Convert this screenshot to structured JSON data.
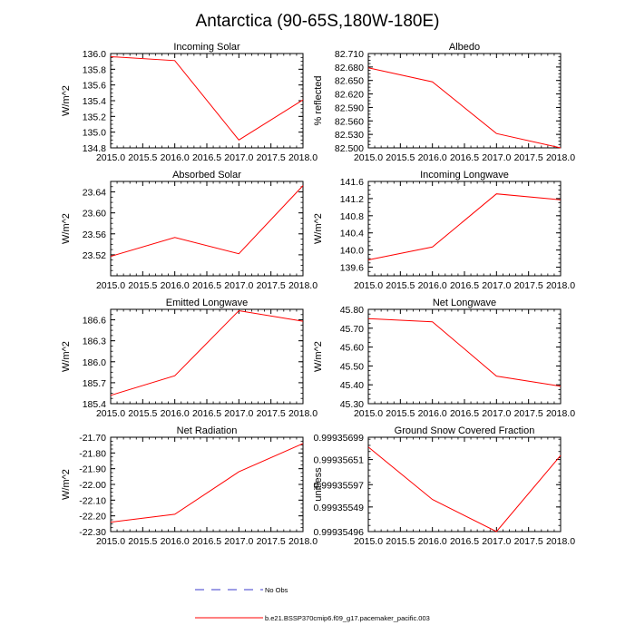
{
  "page_title": "Antarctica (90-65S,180W-180E)",
  "colors": {
    "series": "#ff0000",
    "obs": "#3b3bcc",
    "axis": "#000000"
  },
  "legend": [
    {
      "label": "No Obs",
      "style": "dashed",
      "color": "#3b3bcc"
    },
    {
      "label": "b.e21.BSSP370cmip6.f09_g17.pacemaker_pacific.003",
      "style": "solid",
      "color": "#ff0000"
    }
  ],
  "chart_data": [
    {
      "type": "line",
      "title": "Incoming Solar",
      "ylabel": "W/m^2",
      "xlim": [
        2015,
        2018
      ],
      "xticks": [
        "2015.0",
        "2015.5",
        "2016.0",
        "2016.5",
        "2017.0",
        "2017.5",
        "2018.0"
      ],
      "ylim": [
        134.8,
        136.0
      ],
      "yticks": [
        "134.8",
        "135.0",
        "135.2",
        "135.4",
        "135.6",
        "135.8",
        "136.0"
      ],
      "series": [
        {
          "x": [
            2015,
            2016,
            2017,
            2018
          ],
          "y": [
            135.96,
            135.91,
            134.9,
            135.41
          ]
        }
      ]
    },
    {
      "type": "line",
      "title": "Albedo",
      "ylabel": "% reflected",
      "xlim": [
        2015,
        2018
      ],
      "xticks": [
        "2015.0",
        "2015.5",
        "2016.0",
        "2016.5",
        "2017.0",
        "2017.5",
        "2018.0"
      ],
      "ylim": [
        82.5,
        82.71
      ],
      "yticks": [
        "82.500",
        "82.530",
        "82.560",
        "82.590",
        "82.620",
        "82.650",
        "82.680",
        "82.710"
      ],
      "series": [
        {
          "x": [
            2015,
            2016,
            2017,
            2018
          ],
          "y": [
            82.678,
            82.647,
            82.532,
            82.5
          ]
        }
      ]
    },
    {
      "type": "line",
      "title": "Absorbed Solar",
      "ylabel": "W/m^2",
      "xlim": [
        2015,
        2018
      ],
      "xticks": [
        "2015.0",
        "2015.5",
        "2016.0",
        "2016.5",
        "2017.0",
        "2017.5",
        "2018.0"
      ],
      "ylim": [
        23.48,
        23.66
      ],
      "yticks": [
        "23.52",
        "23.56",
        "23.60",
        "23.64"
      ],
      "series": [
        {
          "x": [
            2015,
            2016,
            2017,
            2018
          ],
          "y": [
            23.517,
            23.553,
            23.522,
            23.652
          ]
        }
      ]
    },
    {
      "type": "line",
      "title": "Incoming Longwave",
      "ylabel": "W/m^2",
      "xlim": [
        2015,
        2018
      ],
      "xticks": [
        "2015.0",
        "2015.5",
        "2016.0",
        "2016.5",
        "2017.0",
        "2017.5",
        "2018.0"
      ],
      "ylim": [
        139.4,
        141.6
      ],
      "yticks": [
        "139.6",
        "140.0",
        "140.4",
        "140.8",
        "141.2",
        "141.6"
      ],
      "series": [
        {
          "x": [
            2015,
            2016,
            2017,
            2018
          ],
          "y": [
            139.77,
            140.07,
            141.31,
            141.17
          ]
        }
      ]
    },
    {
      "type": "line",
      "title": "Emitted Longwave",
      "ylabel": "W/m^2",
      "xlim": [
        2015,
        2018
      ],
      "xticks": [
        "2015.0",
        "2015.5",
        "2016.0",
        "2016.5",
        "2017.0",
        "2017.5",
        "2018.0"
      ],
      "ylim": [
        185.4,
        186.75
      ],
      "yticks": [
        "185.4",
        "185.7",
        "186.0",
        "186.3",
        "186.6"
      ],
      "series": [
        {
          "x": [
            2015,
            2016,
            2017,
            2018
          ],
          "y": [
            185.52,
            185.8,
            186.73,
            186.58
          ]
        }
      ]
    },
    {
      "type": "line",
      "title": "Net Longwave",
      "ylabel": "W/m^2",
      "xlim": [
        2015,
        2018
      ],
      "xticks": [
        "2015.0",
        "2015.5",
        "2016.0",
        "2016.5",
        "2017.0",
        "2017.5",
        "2018.0"
      ],
      "ylim": [
        45.3,
        45.8
      ],
      "yticks": [
        "45.30",
        "45.40",
        "45.50",
        "45.60",
        "45.70",
        "45.80"
      ],
      "series": [
        {
          "x": [
            2015,
            2016,
            2017,
            2018
          ],
          "y": [
            45.751,
            45.734,
            45.446,
            45.393
          ]
        }
      ]
    },
    {
      "type": "line",
      "title": "Net Radiation",
      "ylabel": "W/m^2",
      "xlim": [
        2015,
        2018
      ],
      "xticks": [
        "2015.0",
        "2015.5",
        "2016.0",
        "2016.5",
        "2017.0",
        "2017.5",
        "2018.0"
      ],
      "ylim": [
        -22.3,
        -21.7
      ],
      "yticks": [
        "-22.30",
        "-22.20",
        "-22.10",
        "-22.00",
        "-21.90",
        "-21.80",
        "-21.70"
      ],
      "series": [
        {
          "x": [
            2015,
            2016,
            2017,
            2018
          ],
          "y": [
            -22.24,
            -22.19,
            -21.92,
            -21.74
          ]
        }
      ]
    },
    {
      "type": "line",
      "title": "Ground Snow Covered Fraction",
      "ylabel": "unitless",
      "xlim": [
        2015,
        2018
      ],
      "xticks": [
        "2015.0",
        "2015.5",
        "2016.0",
        "2016.5",
        "2017.0",
        "2017.5",
        "2018.0"
      ],
      "ylim": [
        0.99935496,
        0.99935699
      ],
      "yticks": [
        "0.99935496",
        "0.99935549",
        "0.99935597",
        "0.99935651",
        "0.99935699"
      ],
      "series": [
        {
          "x": [
            2015,
            2016,
            2017,
            2018
          ],
          "y": [
            0.999356779,
            0.999355651,
            0.99935496,
            0.999356598
          ]
        }
      ]
    }
  ]
}
